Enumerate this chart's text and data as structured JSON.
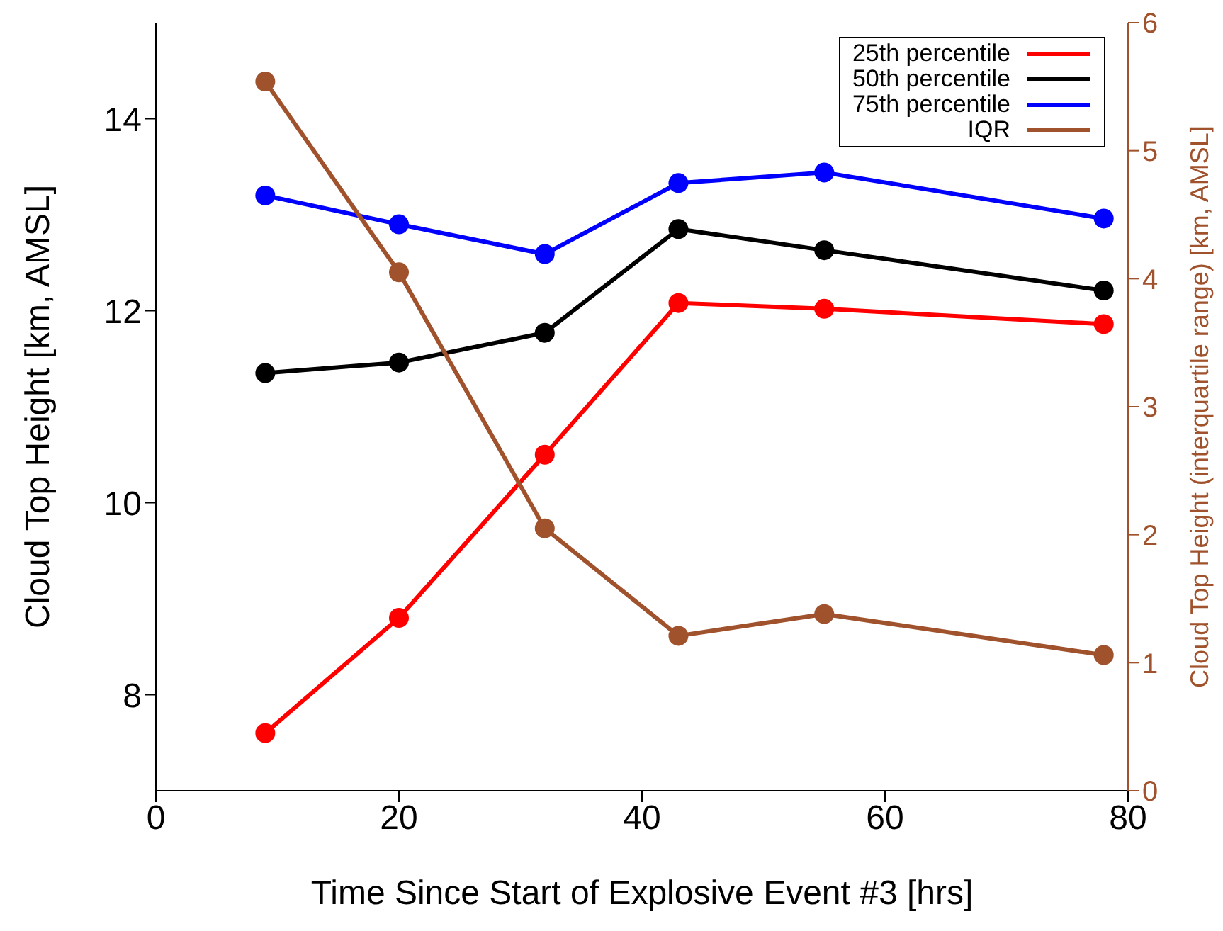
{
  "chart_data": {
    "type": "line",
    "xlabel": "Time Since Start of Explosive Event #3 [hrs]",
    "ylabel": "Cloud Top Height [km, AMSL]",
    "y2label": "Cloud Top Height (interquartile range) [km, AMSL]",
    "x": [
      9,
      20,
      32,
      43,
      55,
      78
    ],
    "series": [
      {
        "name": "25th percentile",
        "color": "#ff0000",
        "values": [
          7.6,
          8.8,
          10.5,
          12.08,
          12.02,
          11.86
        ]
      },
      {
        "name": "50th percentile",
        "color": "#000000",
        "values": [
          11.35,
          11.46,
          11.77,
          12.85,
          12.63,
          12.21
        ]
      },
      {
        "name": "75th percentile",
        "color": "#0000ff",
        "values": [
          13.2,
          12.9,
          12.59,
          13.33,
          13.44,
          12.96
        ]
      },
      {
        "name": "IQR",
        "color": "#a0522d",
        "axis": "y2",
        "values": [
          5.54,
          4.05,
          2.05,
          1.21,
          1.38,
          1.06
        ]
      }
    ],
    "xlim": [
      0,
      80
    ],
    "xticks": [
      0,
      20,
      40,
      60,
      80
    ],
    "ylim": [
      7,
      15
    ],
    "yticks": [
      8,
      10,
      12,
      14
    ],
    "y2lim": [
      0,
      6
    ],
    "y2ticks": [
      0,
      1,
      2,
      3,
      4,
      5,
      6
    ],
    "grid": false,
    "legend": "top right",
    "marker": "circle",
    "line_style": "solid"
  }
}
